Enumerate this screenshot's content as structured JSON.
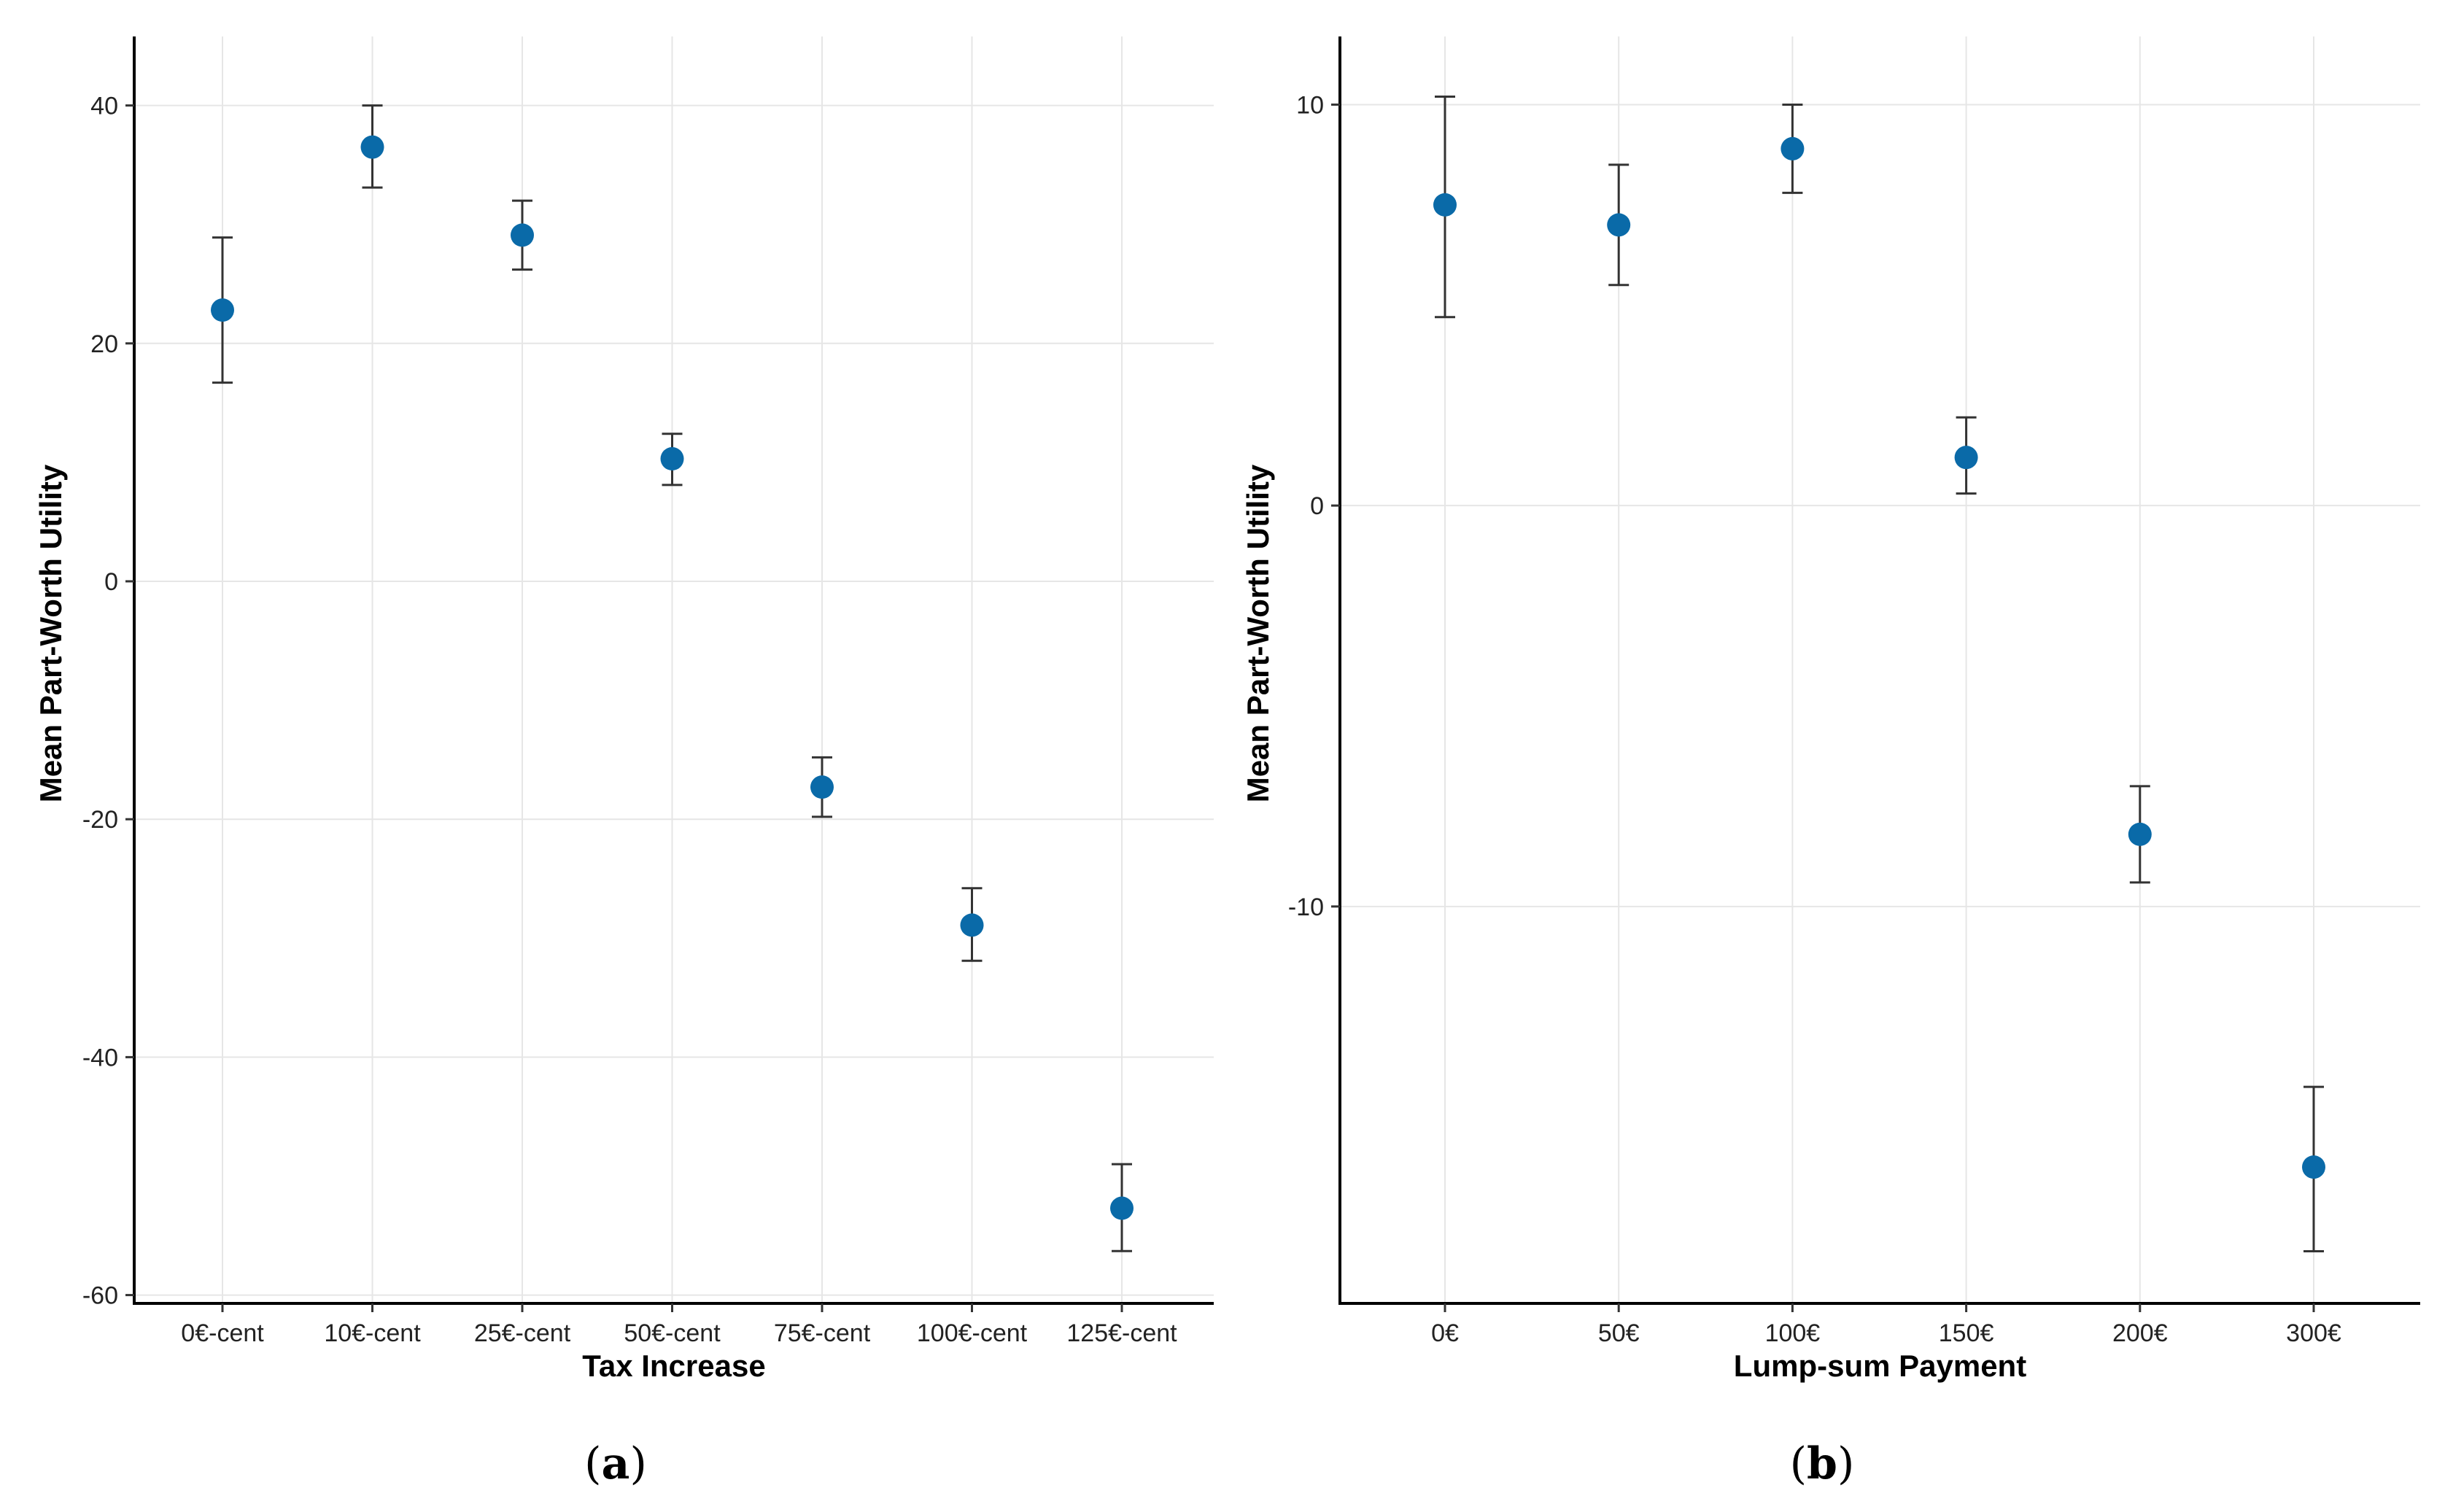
{
  "chart_data": [
    {
      "type": "scatter",
      "panel": "a",
      "caption": "a",
      "xlabel": "Tax Increase",
      "ylabel": "Mean Part-Worth Utility",
      "categories": [
        "0€-cent",
        "10€-cent",
        "25€-cent",
        "50€-cent",
        "75€-cent",
        "100€-cent",
        "125€-cent"
      ],
      "values": [
        22.8,
        36.5,
        29.1,
        10.3,
        -17.3,
        -28.9,
        -52.7
      ],
      "lower": [
        16.7,
        33.1,
        26.2,
        8.1,
        -19.8,
        -31.9,
        -56.3
      ],
      "upper": [
        28.9,
        40.0,
        32.0,
        12.4,
        -14.8,
        -25.8,
        -49.0
      ],
      "yticks": [
        40,
        20,
        0,
        -20,
        -40,
        -60
      ],
      "ytick_labels": [
        "40",
        "20",
        "0",
        "-20",
        "-40",
        "-60"
      ],
      "ylim": [
        -60.7,
        45.8
      ],
      "grid": true,
      "color": "#0a6aa8"
    },
    {
      "type": "scatter",
      "panel": "b",
      "caption": "b",
      "xlabel": "Lump-sum Payment",
      "ylabel": "Mean Part-Worth Utility",
      "categories": [
        "0€",
        "50€",
        "100€",
        "150€",
        "200€",
        "300€"
      ],
      "values": [
        7.5,
        7.0,
        8.9,
        1.2,
        -8.2,
        -16.5
      ],
      "lower": [
        4.7,
        5.5,
        7.8,
        0.3,
        -9.4,
        -18.6
      ],
      "upper": [
        10.2,
        8.5,
        10.0,
        2.2,
        -7.0,
        -14.5
      ],
      "yticks": [
        10,
        0,
        -10
      ],
      "ytick_labels": [
        "10",
        "0",
        "-10"
      ],
      "ylim": [
        -19.9,
        11.7
      ],
      "grid": true,
      "color": "#0a6aa8"
    }
  ]
}
